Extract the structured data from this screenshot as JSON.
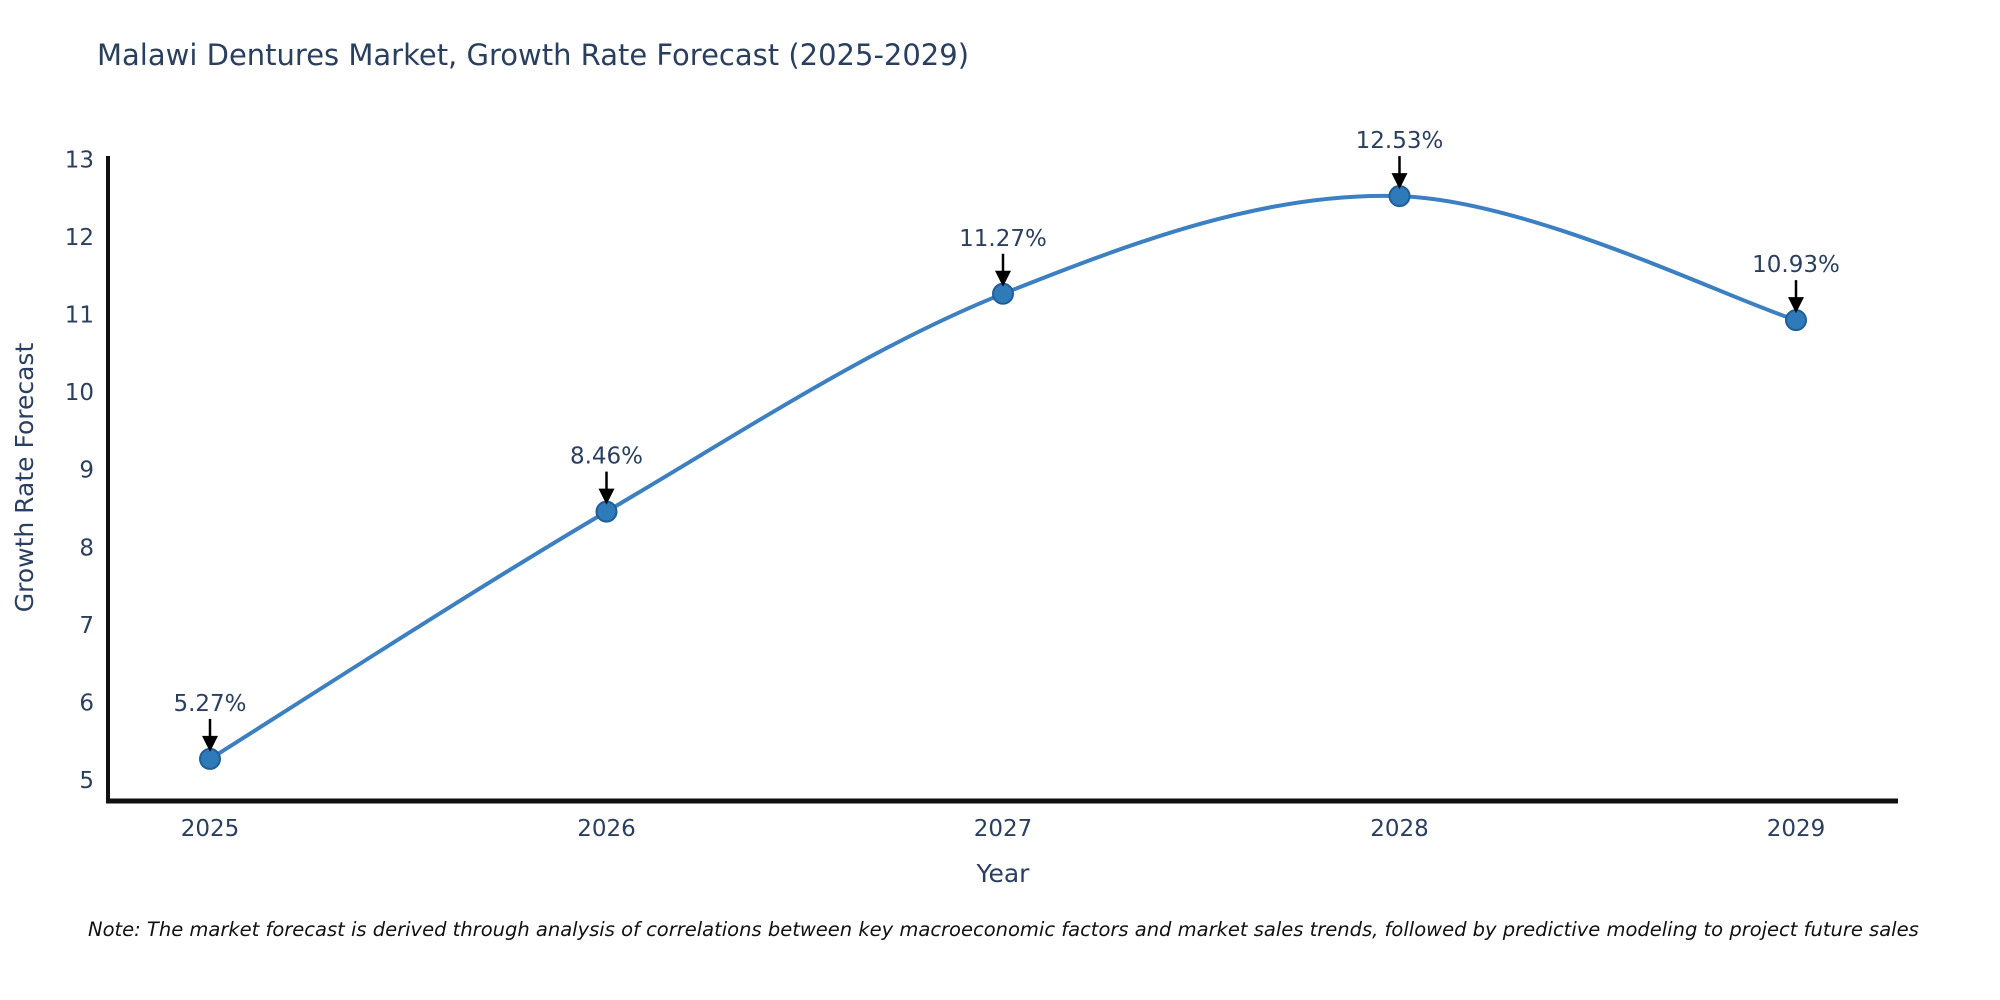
{
  "page": {
    "title": "Malawi Dentures Market, Growth Rate Forecast (2025-2029)"
  },
  "note": "Note: The market forecast is derived through analysis of correlations between key macroeconomic factors and market sales trends, followed by predictive modeling to project future sales",
  "chart_data": {
    "type": "line",
    "title": "Malawi Dentures Market, Growth Rate Forecast (2025-2029)",
    "categories": [
      "2025",
      "2026",
      "2027",
      "2028",
      "2029"
    ],
    "values": [
      5.27,
      8.46,
      11.27,
      12.53,
      10.93
    ],
    "point_labels": [
      "5.27%",
      "8.46%",
      "11.27%",
      "12.53%",
      "10.93%"
    ],
    "xlabel": "Year",
    "ylabel": "Growth Rate Forecast",
    "ylim": [
      4.74,
      13.06
    ],
    "yticks": [
      5,
      6,
      7,
      8,
      9,
      10,
      11,
      12,
      13
    ],
    "line_shape": "spline",
    "grid": false,
    "legend": "none",
    "annotation_style": "value label above black down-arrow at each point",
    "colors": {
      "line": "#3c80c2",
      "marker_fill": "#2f7ab8",
      "marker_edge": "#215e97",
      "axis_line": "#101010",
      "tick_text": "#2a3f5f",
      "title_text": "#2a3f5f",
      "annotation_text": "#2a3f5f",
      "annotation_arrow": "#000000",
      "note_text": "#111111",
      "background": "#ffffff"
    }
  }
}
